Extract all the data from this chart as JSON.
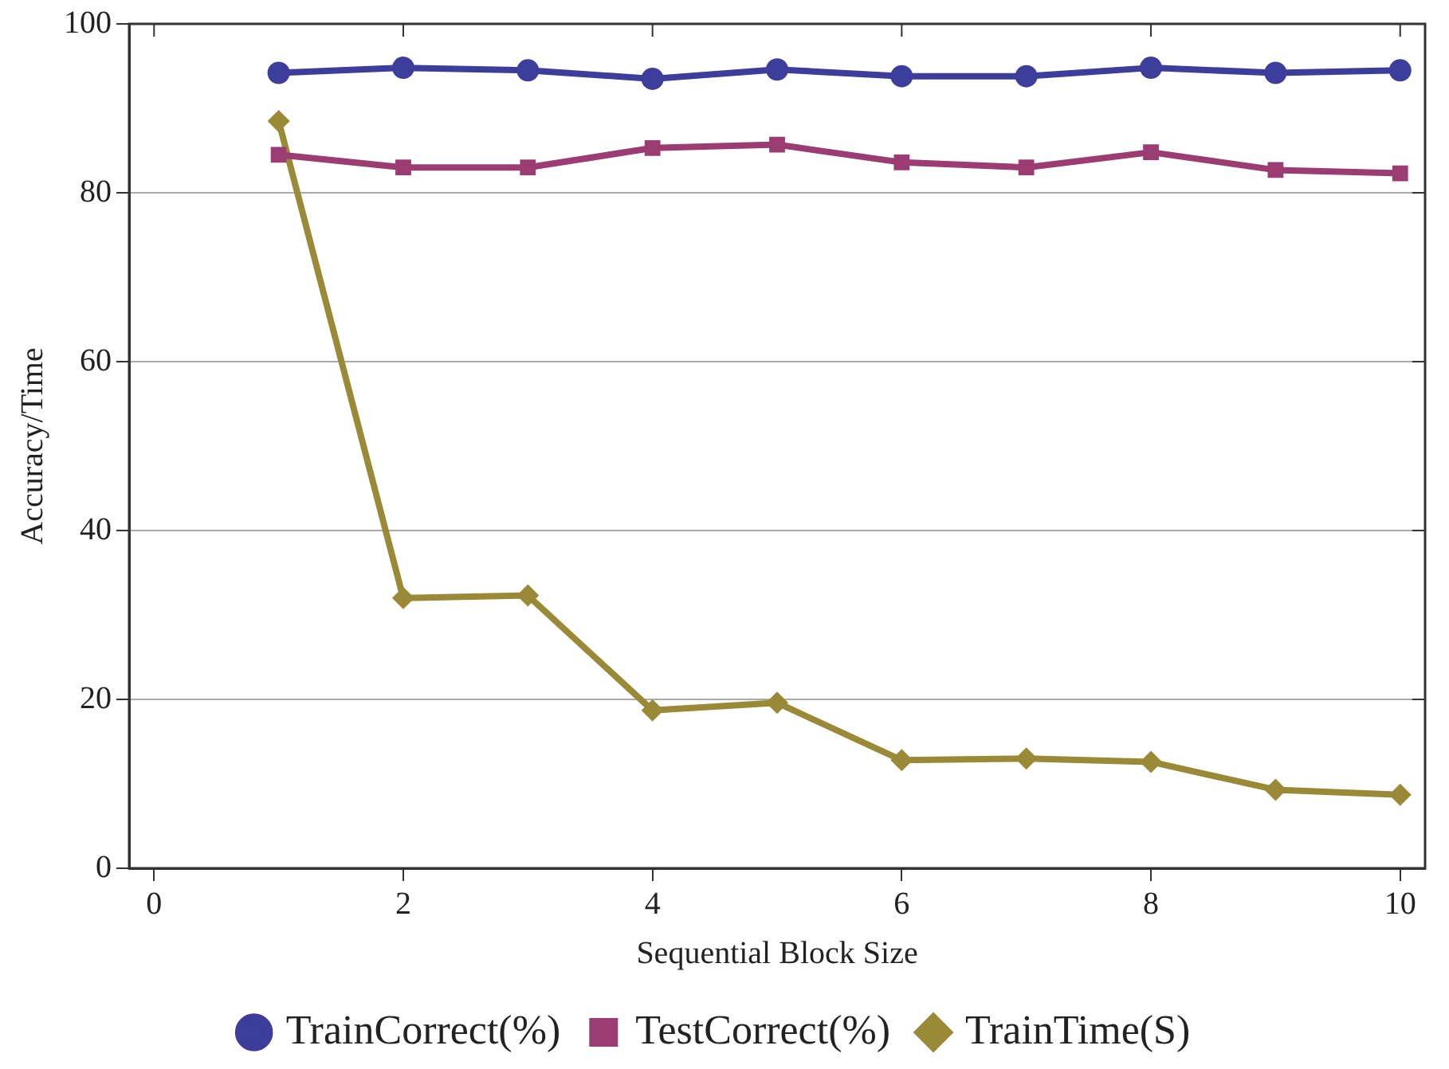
{
  "chart_data": {
    "type": "line",
    "xlabel": "Sequential Block Size",
    "ylabel": "Accuracy/Time",
    "x": [
      1,
      2,
      3,
      4,
      5,
      6,
      7,
      8,
      9,
      10
    ],
    "xlim": [
      -0.2,
      10.2
    ],
    "xticks": [
      0,
      2,
      4,
      6,
      8,
      10
    ],
    "ylim": [
      0,
      100
    ],
    "yticks": [
      0,
      20,
      40,
      60,
      80,
      100
    ],
    "grid": "y",
    "legend": "bottom",
    "line_style": "solid",
    "series": [
      {
        "name": "TrainCorrect(%)",
        "color": "#3d3d9b",
        "marker": "circle",
        "values": [
          94.2,
          94.8,
          94.5,
          93.5,
          94.6,
          93.8,
          93.8,
          94.8,
          94.2,
          94.5
        ]
      },
      {
        "name": "TestCorrect(%)",
        "color": "#9b3d72",
        "marker": "square",
        "values": [
          84.5,
          83,
          83,
          85.3,
          85.7,
          83.6,
          83,
          84.8,
          82.7,
          82.3
        ]
      },
      {
        "name": "TrainTime(S)",
        "color": "#9a8a37",
        "marker": "diamond",
        "values": [
          88.5,
          32,
          32.3,
          18.7,
          19.6,
          12.8,
          13,
          12.6,
          9.3,
          8.7
        ]
      }
    ]
  }
}
